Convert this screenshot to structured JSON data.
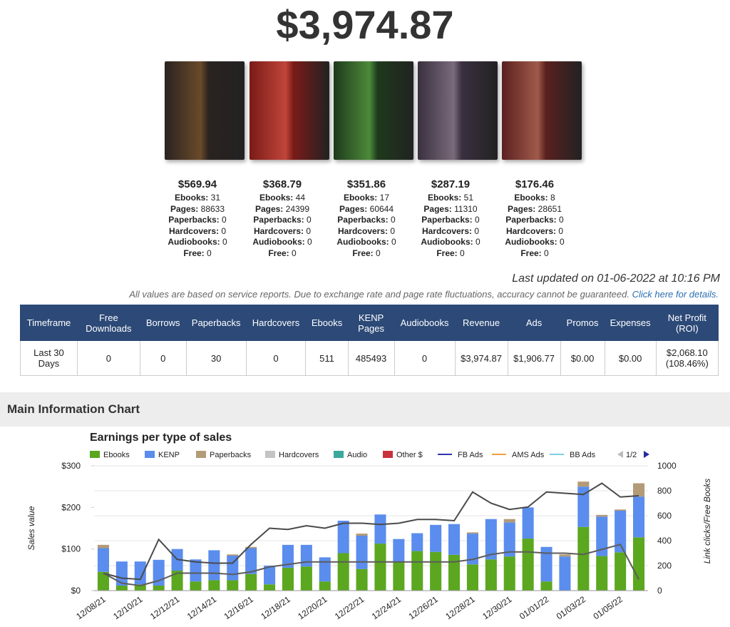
{
  "header": {
    "total": "$3,974.87"
  },
  "books": [
    {
      "revenue": "$569.94",
      "stats": [
        {
          "label": "Ebooks:",
          "value": 31
        },
        {
          "label": "Pages:",
          "value": 88633
        },
        {
          "label": "Paperbacks:",
          "value": 0
        },
        {
          "label": "Hardcovers:",
          "value": 0
        },
        {
          "label": "Audiobooks:",
          "value": 0
        },
        {
          "label": "Free:",
          "value": 0
        }
      ]
    },
    {
      "revenue": "$368.79",
      "stats": [
        {
          "label": "Ebooks:",
          "value": 44
        },
        {
          "label": "Pages:",
          "value": 24399
        },
        {
          "label": "Paperbacks:",
          "value": 0
        },
        {
          "label": "Hardcovers:",
          "value": 0
        },
        {
          "label": "Audiobooks:",
          "value": 0
        },
        {
          "label": "Free:",
          "value": 0
        }
      ]
    },
    {
      "revenue": "$351.86",
      "stats": [
        {
          "label": "Ebooks:",
          "value": 17
        },
        {
          "label": "Pages:",
          "value": 60644
        },
        {
          "label": "Paperbacks:",
          "value": 0
        },
        {
          "label": "Hardcovers:",
          "value": 0
        },
        {
          "label": "Audiobooks:",
          "value": 0
        },
        {
          "label": "Free:",
          "value": 0
        }
      ]
    },
    {
      "revenue": "$287.19",
      "stats": [
        {
          "label": "Ebooks:",
          "value": 51
        },
        {
          "label": "Pages:",
          "value": 11310
        },
        {
          "label": "Paperbacks:",
          "value": 0
        },
        {
          "label": "Hardcovers:",
          "value": 0
        },
        {
          "label": "Audiobooks:",
          "value": 0
        },
        {
          "label": "Free:",
          "value": 0
        }
      ]
    },
    {
      "revenue": "$176.46",
      "stats": [
        {
          "label": "Ebooks:",
          "value": 8
        },
        {
          "label": "Pages:",
          "value": 28651
        },
        {
          "label": "Paperbacks:",
          "value": 0
        },
        {
          "label": "Hardcovers:",
          "value": 0
        },
        {
          "label": "Audiobooks:",
          "value": 0
        },
        {
          "label": "Free:",
          "value": 0
        }
      ]
    }
  ],
  "last_updated": "Last updated on 01-06-2022 at 10:16 PM",
  "disclaimer": "All values are based on service reports. Due to exchange rate and page rate fluctuations, accuracy cannot be guaranteed.",
  "details_link": "Click here for details.",
  "table": {
    "headers": [
      "Timeframe",
      "Free Downloads",
      "Borrows",
      "Paperbacks",
      "Hardcovers",
      "Ebooks",
      "KENP Pages",
      "Audiobooks",
      "Revenue",
      "Ads",
      "Promos",
      "Expenses",
      "Net Profit (ROI)"
    ],
    "rows": [
      [
        "Last 30 Days",
        "0",
        "0",
        "30",
        "0",
        "511",
        "485493",
        "0",
        "$3,974.87",
        "$1,906.77",
        "$0.00",
        "$0.00",
        "$2,068.10 (108.46%)"
      ]
    ]
  },
  "section_title": "Main Information Chart",
  "chart_data": {
    "type": "bar",
    "title": "Earnings per type of sales",
    "y_label": "Sales value",
    "y2_label": "Link clicks/Free Books",
    "legend_page": "1/2",
    "categories": [
      "12/08/21",
      null,
      "12/10/21",
      null,
      "12/12/21",
      null,
      "12/14/21",
      null,
      "12/16/21",
      null,
      "12/18/21",
      null,
      "12/20/21",
      null,
      "12/22/21",
      null,
      "12/24/21",
      null,
      "12/26/21",
      null,
      "12/28/21",
      null,
      "12/30/21",
      null,
      "01/01/22",
      null,
      "01/03/22",
      null,
      "01/05/22",
      null
    ],
    "ylim": [
      0,
      300
    ],
    "yticks": [
      {
        "value": 0,
        "label": "$0"
      },
      {
        "value": 100,
        "label": "$100"
      },
      {
        "value": 200,
        "label": "$200"
      },
      {
        "value": 300,
        "label": "$300"
      }
    ],
    "y2lim": [
      0,
      1000
    ],
    "y2ticks": [
      0,
      200,
      400,
      600,
      800,
      1000
    ],
    "grid": true,
    "series": [
      {
        "name": "Ebooks",
        "color": "#5ba71f",
        "type": "bar",
        "values": [
          45,
          12,
          15,
          12,
          48,
          22,
          25,
          25,
          40,
          15,
          55,
          58,
          22,
          90,
          52,
          113,
          70,
          95,
          93,
          86,
          63,
          75,
          82,
          125,
          22,
          0,
          153,
          83,
          92,
          128
        ]
      },
      {
        "name": "KENP",
        "color": "#5a8ded",
        "type": "bar",
        "values": [
          57,
          58,
          55,
          62,
          52,
          53,
          72,
          59,
          62,
          45,
          55,
          52,
          58,
          78,
          80,
          70,
          54,
          43,
          65,
          74,
          74,
          97,
          82,
          75,
          83,
          82,
          97,
          95,
          100,
          98
        ]
      },
      {
        "name": "Paperbacks",
        "color": "#b39b77",
        "type": "bar",
        "values": [
          8,
          0,
          0,
          0,
          0,
          0,
          0,
          3,
          3,
          0,
          0,
          0,
          0,
          0,
          5,
          0,
          0,
          0,
          0,
          0,
          3,
          0,
          8,
          0,
          0,
          5,
          12,
          4,
          3,
          32
        ]
      },
      {
        "name": "Hardcovers",
        "color": "#c4c4c4",
        "type": "bar",
        "values": [
          0,
          0,
          0,
          0,
          0,
          0,
          0,
          0,
          0,
          0,
          0,
          0,
          0,
          0,
          0,
          0,
          0,
          0,
          0,
          0,
          0,
          0,
          0,
          0,
          0,
          0,
          0,
          0,
          0,
          0
        ]
      },
      {
        "name": "Audio",
        "color": "#3aa89d",
        "type": "bar",
        "values": [
          0,
          0,
          0,
          0,
          0,
          0,
          0,
          0,
          0,
          0,
          0,
          0,
          0,
          0,
          0,
          0,
          0,
          0,
          0,
          0,
          0,
          0,
          0,
          0,
          0,
          0,
          0,
          0,
          0,
          0
        ]
      },
      {
        "name": "Other $",
        "color": "#c8323c",
        "type": "bar",
        "values": [
          0,
          0,
          0,
          0,
          0,
          0,
          0,
          0,
          0,
          0,
          0,
          0,
          0,
          0,
          0,
          0,
          0,
          0,
          0,
          0,
          0,
          0,
          0,
          0,
          0,
          0,
          0,
          0,
          0,
          0
        ]
      },
      {
        "name": "FB Ads",
        "color": "#3232b4",
        "type": "line",
        "axis": "y2",
        "values": [
          null,
          null,
          null,
          null,
          null,
          null,
          null,
          null,
          null,
          null,
          null,
          null,
          null,
          null,
          null,
          null,
          null,
          null,
          null,
          null,
          null,
          null,
          null,
          null,
          null,
          null,
          null,
          null,
          null,
          null
        ]
      },
      {
        "name": "AMS Ads",
        "color": "#f0a040",
        "type": "line",
        "axis": "y2",
        "values": [
          null,
          null,
          null,
          null,
          null,
          null,
          null,
          null,
          null,
          null,
          null,
          null,
          null,
          null,
          null,
          null,
          null,
          null,
          null,
          null,
          null,
          null,
          null,
          null,
          null,
          null,
          null,
          null,
          null,
          null
        ]
      },
      {
        "name": "BB Ads",
        "color": "#7ccfe0",
        "type": "line",
        "axis": "y2",
        "values": [
          null,
          null,
          null,
          null,
          null,
          null,
          null,
          null,
          null,
          null,
          null,
          null,
          null,
          null,
          null,
          null,
          null,
          null,
          null,
          null,
          null,
          null,
          null,
          null,
          null,
          null,
          null,
          null,
          null,
          null
        ]
      }
    ],
    "lines": [
      {
        "color": "#4a4a4a",
        "axis": "y2",
        "values": [
          140,
          100,
          90,
          410,
          250,
          230,
          220,
          220,
          370,
          500,
          490,
          520,
          500,
          540,
          540,
          530,
          540,
          570,
          570,
          560,
          790,
          700,
          650,
          670,
          790,
          780,
          770,
          860,
          750,
          760
        ]
      },
      {
        "color": "#5c5c5c",
        "axis": "y2",
        "values": [
          140,
          60,
          40,
          80,
          140,
          140,
          140,
          130,
          150,
          190,
          210,
          230,
          230,
          230,
          230,
          230,
          230,
          230,
          230,
          230,
          250,
          290,
          310,
          310,
          300,
          300,
          290,
          330,
          370,
          90
        ]
      }
    ]
  }
}
